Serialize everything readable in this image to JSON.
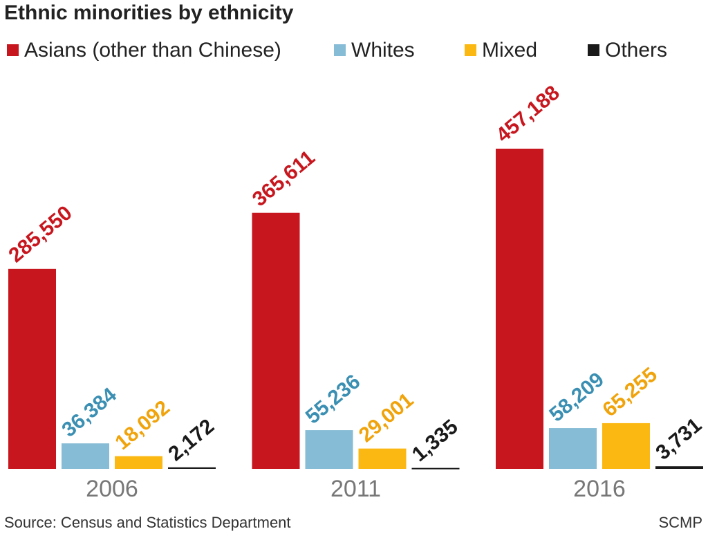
{
  "chart_data": {
    "type": "bar",
    "title": "Ethnic minorities by ethnicity",
    "categories": [
      "2006",
      "2011",
      "2016"
    ],
    "series": [
      {
        "name": "Asians (other than Chinese)",
        "color": "#c8161e",
        "label_color": "#c8161e",
        "values": [
          285550,
          365611,
          457188
        ],
        "value_labels": [
          "285,550",
          "365,611",
          "457,188"
        ]
      },
      {
        "name": "Whites",
        "color": "#87bcd6",
        "label_color": "#3a8fb2",
        "values": [
          36384,
          55236,
          58209
        ],
        "value_labels": [
          "36,384",
          "55,236",
          "58,209"
        ]
      },
      {
        "name": "Mixed",
        "color": "#fbb812",
        "label_color": "#f0a30a",
        "values": [
          18092,
          29001,
          65255
        ],
        "value_labels": [
          "18,092",
          "29,001",
          "65,255"
        ]
      },
      {
        "name": "Others",
        "color": "#1a1a1a",
        "label_color": "#1a1a1a",
        "values": [
          2172,
          1335,
          3731
        ],
        "value_labels": [
          "2,172",
          "1,335",
          "3,731"
        ]
      }
    ],
    "source": "Source: Census and Statistics Department",
    "credit": "SCMP"
  }
}
